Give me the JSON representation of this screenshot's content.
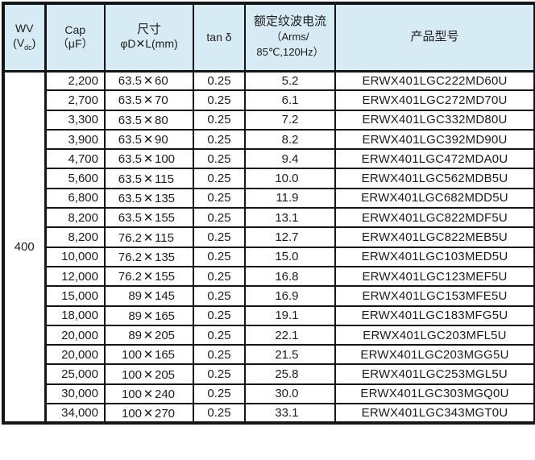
{
  "colors": {
    "header_bg": "#d7ebf4",
    "border": "#151515",
    "text": "#1c1c1c"
  },
  "table": {
    "header": {
      "wv_title": "WV",
      "wv_unit_pre": "(V",
      "wv_unit_sub": "dc",
      "wv_unit_post": ")",
      "cap_title": "Cap",
      "cap_unit": "（μF）",
      "size_title": "尺寸",
      "size_unit": "φD✕L(mm)",
      "tan_title": "tan δ",
      "ripple_title": "额定纹波电流",
      "ripple_unit_line1": "（Arms/",
      "ripple_unit_line2": "85℃,120Hz）",
      "part_title": "产品型号"
    },
    "wv_value": "400",
    "times_symbol": "✕",
    "rows": [
      {
        "cap": "2,200",
        "dim_d": "63.5",
        "dim_l": "60",
        "tan": "0.25",
        "ripple": "5.2",
        "part": "ERWX401LGC222MD60U"
      },
      {
        "cap": "2,700",
        "dim_d": "63.5",
        "dim_l": "70",
        "tan": "0.25",
        "ripple": "6.1",
        "part": "ERWX401LGC272MD70U"
      },
      {
        "cap": "3,300",
        "dim_d": "63.5",
        "dim_l": "80",
        "tan": "0.25",
        "ripple": "7.2",
        "part": "ERWX401LGC332MD80U"
      },
      {
        "cap": "3,900",
        "dim_d": "63.5",
        "dim_l": "90",
        "tan": "0.25",
        "ripple": "8.2",
        "part": "ERWX401LGC392MD90U"
      },
      {
        "cap": "4,700",
        "dim_d": "63.5",
        "dim_l": "100",
        "tan": "0.25",
        "ripple": "9.4",
        "part": "ERWX401LGC472MDA0U"
      },
      {
        "cap": "5,600",
        "dim_d": "63.5",
        "dim_l": "115",
        "tan": "0.25",
        "ripple": "10.0",
        "part": "ERWX401LGC562MDB5U"
      },
      {
        "cap": "6,800",
        "dim_d": "63.5",
        "dim_l": "135",
        "tan": "0.25",
        "ripple": "11.9",
        "part": "ERWX401LGC682MDD5U"
      },
      {
        "cap": "8,200",
        "dim_d": "63.5",
        "dim_l": "155",
        "tan": "0.25",
        "ripple": "13.1",
        "part": "ERWX401LGC822MDF5U"
      },
      {
        "cap": "8,200",
        "dim_d": "76.2",
        "dim_l": "115",
        "tan": "0.25",
        "ripple": "12.7",
        "part": "ERWX401LGC822MEB5U"
      },
      {
        "cap": "10,000",
        "dim_d": "76.2",
        "dim_l": "135",
        "tan": "0.25",
        "ripple": "15.0",
        "part": "ERWX401LGC103MED5U"
      },
      {
        "cap": "12,000",
        "dim_d": "76.2",
        "dim_l": "155",
        "tan": "0.25",
        "ripple": "16.8",
        "part": "ERWX401LGC123MEF5U"
      },
      {
        "cap": "15,000",
        "dim_d": "89",
        "dim_l": "145",
        "tan": "0.25",
        "ripple": "16.9",
        "part": "ERWX401LGC153MFE5U"
      },
      {
        "cap": "18,000",
        "dim_d": "89",
        "dim_l": "165",
        "tan": "0.25",
        "ripple": "19.1",
        "part": "ERWX401LGC183MFG5U"
      },
      {
        "cap": "20,000",
        "dim_d": "89",
        "dim_l": "205",
        "tan": "0.25",
        "ripple": "22.1",
        "part": "ERWX401LGC203MFL5U"
      },
      {
        "cap": "20,000",
        "dim_d": "100",
        "dim_l": "165",
        "tan": "0.25",
        "ripple": "21.5",
        "part": "ERWX401LGC203MGG5U"
      },
      {
        "cap": "25,000",
        "dim_d": "100",
        "dim_l": "205",
        "tan": "0.25",
        "ripple": "25.8",
        "part": "ERWX401LGC253MGL5U"
      },
      {
        "cap": "30,000",
        "dim_d": "100",
        "dim_l": "240",
        "tan": "0.25",
        "ripple": "30.0",
        "part": "ERWX401LGC303MGQ0U"
      },
      {
        "cap": "34,000",
        "dim_d": "100",
        "dim_l": "270",
        "tan": "0.25",
        "ripple": "33.1",
        "part": "ERWX401LGC343MGT0U"
      }
    ]
  }
}
